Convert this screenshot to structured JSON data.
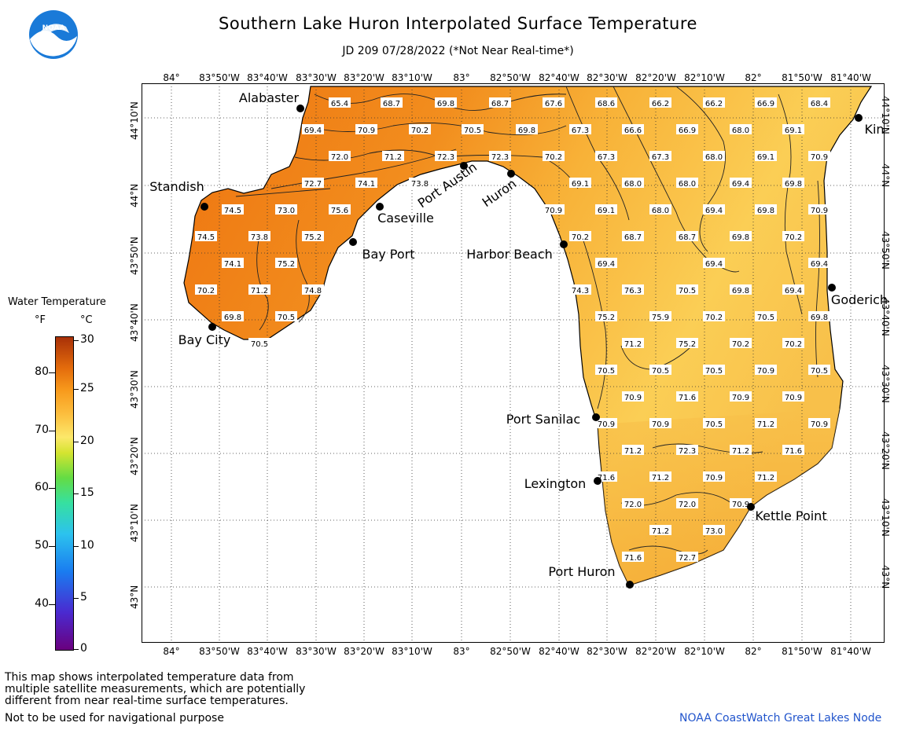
{
  "title": "Southern Lake Huron Interpolated Surface Temperature",
  "subtitle": "JD 209 07/28/2022 (*Not Near Real-time*)",
  "logo_text": "NOAA",
  "lon_labels": [
    "84°",
    "83°50'W",
    "83°40'W",
    "83°30'W",
    "83°20'W",
    "83°10'W",
    "83°",
    "82°50'W",
    "82°40'W",
    "82°30'W",
    "82°20'W",
    "82°10'W",
    "82°",
    "81°50'W",
    "81°40'W"
  ],
  "lat_labels": [
    "44°10'N",
    "44°N",
    "43°50'N",
    "43°40'N",
    "43°30'N",
    "43°20'N",
    "43°10'N",
    "43°N"
  ],
  "legend": {
    "title": "Water Temperature",
    "unit_f": "°F",
    "unit_c": "°C",
    "f_ticks": [
      "80",
      "70",
      "60",
      "50",
      "40"
    ],
    "c_ticks": [
      "30",
      "25",
      "20",
      "15",
      "10",
      "5",
      "0"
    ]
  },
  "cities": [
    {
      "name": "Alabaster"
    },
    {
      "name": "Standish"
    },
    {
      "name": "Caseville"
    },
    {
      "name": "Bay Port"
    },
    {
      "name": "Bay City"
    },
    {
      "name": "Port Austin"
    },
    {
      "name": "Huron"
    },
    {
      "name": "Harbor Beach"
    },
    {
      "name": "Port Sanilac"
    },
    {
      "name": "Lexington"
    },
    {
      "name": "Port Huron"
    },
    {
      "name": "Kettle Point"
    },
    {
      "name": "Goderich"
    },
    {
      "name": "Kin"
    }
  ],
  "temperatures": [
    {
      "t": "65.4"
    },
    {
      "t": "68.7"
    },
    {
      "t": "69.8"
    },
    {
      "t": "68.7"
    },
    {
      "t": "67.6"
    },
    {
      "t": "68.6"
    },
    {
      "t": "66.2"
    },
    {
      "t": "66.2"
    },
    {
      "t": "66.9"
    },
    {
      "t": "68.4"
    },
    {
      "t": "69.4"
    },
    {
      "t": "70.9"
    },
    {
      "t": "70.2"
    },
    {
      "t": "70.5"
    },
    {
      "t": "69.8"
    },
    {
      "t": "67.3"
    },
    {
      "t": "66.6"
    },
    {
      "t": "66.9"
    },
    {
      "t": "68.0"
    },
    {
      "t": "69.1"
    },
    {
      "t": "72.0"
    },
    {
      "t": "71.2"
    },
    {
      "t": "72.3"
    },
    {
      "t": "72.3"
    },
    {
      "t": "70.2"
    },
    {
      "t": "67.3"
    },
    {
      "t": "67.3"
    },
    {
      "t": "68.0"
    },
    {
      "t": "69.1"
    },
    {
      "t": "70.9"
    },
    {
      "t": "72.7"
    },
    {
      "t": "74.1"
    },
    {
      "t": "73.8"
    },
    {
      "t": "69.1"
    },
    {
      "t": "68.0"
    },
    {
      "t": "68.0"
    },
    {
      "t": "69.4"
    },
    {
      "t": "69.8"
    },
    {
      "t": "74.5"
    },
    {
      "t": "73.0"
    },
    {
      "t": "75.6"
    },
    {
      "t": "70.9"
    },
    {
      "t": "69.1"
    },
    {
      "t": "68.0"
    },
    {
      "t": "69.4"
    },
    {
      "t": "69.8"
    },
    {
      "t": "70.9"
    },
    {
      "t": "74.5"
    },
    {
      "t": "73.8"
    },
    {
      "t": "75.2"
    },
    {
      "t": "70.2"
    },
    {
      "t": "68.7"
    },
    {
      "t": "68.7"
    },
    {
      "t": "69.8"
    },
    {
      "t": "70.2"
    },
    {
      "t": "74.1"
    },
    {
      "t": "75.2"
    },
    {
      "t": "69.4"
    },
    {
      "t": "69.4"
    },
    {
      "t": "69.4"
    },
    {
      "t": "70.2"
    },
    {
      "t": "71.2"
    },
    {
      "t": "74.8"
    },
    {
      "t": "74.3"
    },
    {
      "t": "76.3"
    },
    {
      "t": "70.5"
    },
    {
      "t": "69.8"
    },
    {
      "t": "69.4"
    },
    {
      "t": "69.8"
    },
    {
      "t": "70.5"
    },
    {
      "t": "75.2"
    },
    {
      "t": "75.9"
    },
    {
      "t": "70.2"
    },
    {
      "t": "70.5"
    },
    {
      "t": "69.8"
    },
    {
      "t": "70.5"
    },
    {
      "t": "71.2"
    },
    {
      "t": "75.2"
    },
    {
      "t": "70.2"
    },
    {
      "t": "70.2"
    },
    {
      "t": "70.5"
    },
    {
      "t": "70.5"
    },
    {
      "t": "70.5"
    },
    {
      "t": "70.9"
    },
    {
      "t": "70.5"
    },
    {
      "t": "70.9"
    },
    {
      "t": "71.6"
    },
    {
      "t": "70.9"
    },
    {
      "t": "70.9"
    },
    {
      "t": "70.9"
    },
    {
      "t": "70.9"
    },
    {
      "t": "70.5"
    },
    {
      "t": "71.2"
    },
    {
      "t": "70.9"
    },
    {
      "t": "71.2"
    },
    {
      "t": "72.3"
    },
    {
      "t": "71.2"
    },
    {
      "t": "71.6"
    },
    {
      "t": "71.6"
    },
    {
      "t": "71.2"
    },
    {
      "t": "70.9"
    },
    {
      "t": "71.2"
    },
    {
      "t": "72.0"
    },
    {
      "t": "72.0"
    },
    {
      "t": "70.9"
    },
    {
      "t": "71.2"
    },
    {
      "t": "73.0"
    },
    {
      "t": "71.6"
    },
    {
      "t": "72.7"
    },
    {
      "t": "71.2"
    },
    {
      "t": "72.3"
    }
  ],
  "footnote": [
    "This map shows interpolated temperature data from",
    "multiple satellite measurements, which are potentially",
    "different from near real-time surface temperatures."
  ],
  "disclaimer": "Not to be used for navigational purpose",
  "credit": "NOAA CoastWatch Great Lakes Node",
  "colors": {
    "lake_warm": "#f07c10",
    "lake_mid": "#f7a52c",
    "lake_cool": "#fbd862",
    "credit": "#2255cc"
  }
}
